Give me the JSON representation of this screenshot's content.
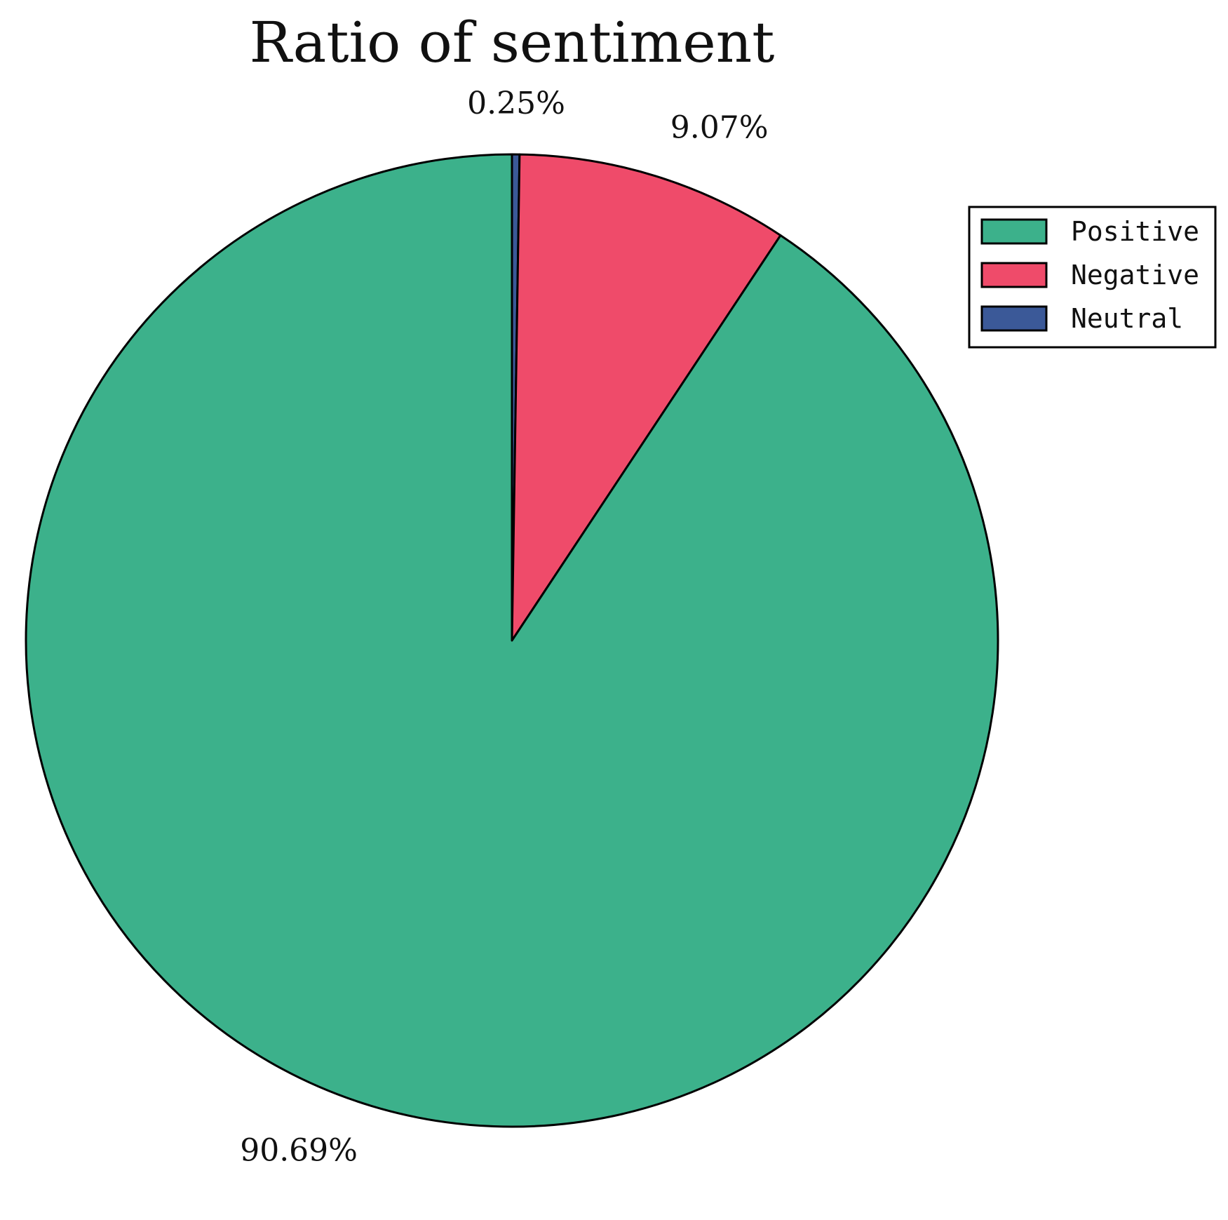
{
  "chart_data": {
    "type": "pie",
    "title": "Ratio of sentiment",
    "start": "top",
    "direction": "clockwise",
    "slices": [
      {
        "name": "Neutral",
        "value": 0.25,
        "label": "0.25%",
        "color": "#3b5998"
      },
      {
        "name": "Negative",
        "value": 9.07,
        "label": "9.07%",
        "color": "#ef4b6a"
      },
      {
        "name": "Positive",
        "value": 90.69,
        "label": "90.69%",
        "color": "#3cb18b"
      }
    ],
    "legend": {
      "placement": "top-right",
      "entries": [
        {
          "name": "Positive",
          "color": "#3cb18b"
        },
        {
          "name": "Negative",
          "color": "#ef4b6a"
        },
        {
          "name": "Neutral",
          "color": "#3b5998"
        }
      ]
    }
  }
}
